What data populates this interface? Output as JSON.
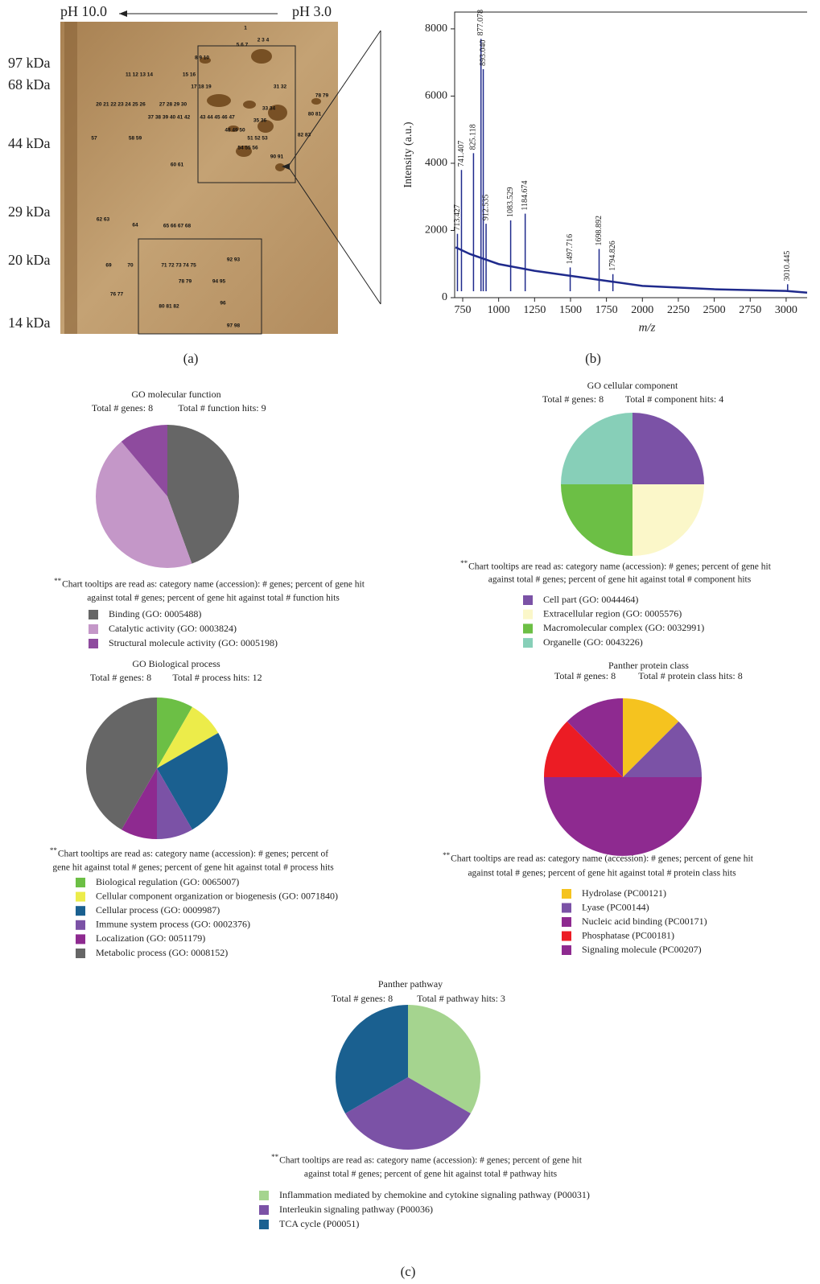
{
  "panel_labels": [
    "(a)",
    "(b)",
    "(c)"
  ],
  "gel": {
    "ph_left": "pH 10.0",
    "ph_right": "pH 3.0",
    "mw_labels": [
      "97 kDa",
      "68 kDa",
      "44 kDa",
      "29 kDa",
      "20 kDa",
      "14 kDa"
    ],
    "spot_labels": [
      "1",
      "5 6 7",
      "2 3 4",
      "8 9 10",
      "11 12 13 14",
      "15 16",
      "17 18 19",
      "31 32",
      "78 79",
      "20 21 22 23 24 25 26",
      "27 28 29 30",
      "33 34",
      "80 81",
      "37 38 39 40 41 42",
      "43 44 45 46 47",
      "35 36",
      "48 49 50",
      "82 83",
      "57",
      "58 59",
      "51 52 53",
      "54 55 56",
      "90 91",
      "60 61",
      "62 63",
      "64",
      "65 66 67 68",
      "92 93",
      "69",
      "70",
      "71 72 73 74 75",
      "78 79",
      "94 95",
      "76 77",
      "96",
      "80 81 82",
      "97 98"
    ]
  },
  "chart_data": [
    {
      "type": "spectrum",
      "ylabel": "Intensity (a.u.)",
      "xlabel": "m/z",
      "color": "#1f2a8c",
      "xlim": [
        694,
        3146
      ],
      "ylim": [
        0,
        8500
      ],
      "xticks": [
        750,
        1000,
        1250,
        1500,
        1750,
        2000,
        2250,
        2500,
        2750,
        3000
      ],
      "yticks": [
        0,
        2000,
        4000,
        6000,
        8000
      ],
      "peaks": {
        "x": [
          713.427,
          741.407,
          825.118,
          877.078,
          893.04,
          912.535,
          1083.529,
          1184.674,
          1497.716,
          1698.892,
          1794.826,
          3010.445
        ],
        "values": [
          1900,
          3800,
          4300,
          7700,
          6800,
          2200,
          2300,
          2500,
          900,
          1450,
          700,
          400
        ],
        "labels": [
          "713.427",
          "741.407",
          "825.118",
          "877.078",
          "893.040",
          "912.535",
          "1083.529",
          "1184.674",
          "1497.716",
          "1698.892",
          "1794.826",
          "3010.445"
        ]
      },
      "baseline": {
        "x": [
          700,
          800,
          1000,
          1250,
          1500,
          1750,
          2000,
          2500,
          3000,
          3146
        ],
        "values": [
          1500,
          1300,
          1000,
          800,
          650,
          500,
          350,
          250,
          200,
          150
        ]
      }
    },
    {
      "type": "pie",
      "title": "GO molecular function",
      "subtitle": [
        "Total # genes: 8",
        "Total # function hits: 9"
      ],
      "note_marker": "**",
      "note_lines": [
        "Chart tooltips are read as: category name (accession): # genes; percent of gene hit",
        "against total # genes; percent of gene hit against total # function hits"
      ],
      "categories": [
        "Binding (GO: 0005488)",
        "Catalytic activity (GO: 0003824)",
        "Structural molecule activity (GO: 0005198)"
      ],
      "values": [
        4,
        4,
        1
      ],
      "colors": [
        "#666666",
        "#c497c8",
        "#8e4b9e"
      ]
    },
    {
      "type": "pie",
      "title": "GO cellular component",
      "subtitle": [
        "Total # genes: 8",
        "Total # component hits: 4"
      ],
      "note_marker": "**",
      "note_lines": [
        "Chart tooltips are read as: category name (accession): # genes; percent of gene hit",
        "against total # genes; percent of gene hit against total # component hits"
      ],
      "categories": [
        "Cell part (GO: 0044464)",
        "Extracellular region (GO: 0005576)",
        "Macromolecular complex (GO: 0032991)",
        "Organelle (GO: 0043226)"
      ],
      "values": [
        1,
        1,
        1,
        1
      ],
      "colors": [
        "#7b52a6",
        "#fbf7c9",
        "#6cbf45",
        "#87cfb8"
      ]
    },
    {
      "type": "pie",
      "title": "GO Biological process",
      "subtitle": [
        "Total # genes: 8",
        "Total # process hits: 12"
      ],
      "note_marker": "**",
      "note_lines": [
        "Chart tooltips are read as: category name (accession): # genes; percent of",
        "gene hit against total # genes; percent of gene hit against total # process hits"
      ],
      "categories": [
        "Biological regulation (GO: 0065007)",
        "Cellular component organization or biogenesis (GO: 0071840)",
        "Cellular process (GO: 0009987)",
        "Immune system process (GO: 0002376)",
        "Localization (GO: 0051179)",
        "Metabolic process (GO: 0008152)"
      ],
      "values": [
        1,
        1,
        3,
        1,
        1,
        5
      ],
      "colors": [
        "#6cbf45",
        "#ecec4a",
        "#1a6090",
        "#7b52a6",
        "#8e2a90",
        "#666666"
      ]
    },
    {
      "type": "pie",
      "title": "Panther protein class",
      "subtitle": [
        "Total # genes: 8",
        "Total # protein class hits: 8"
      ],
      "note_marker": "**",
      "note_lines": [
        "Chart tooltips are read as: category name (accession): # genes; percent of gene hit",
        "against total # genes; percent of gene hit against total # protein class hits"
      ],
      "categories": [
        "Hydrolase (PC00121)",
        "Lyase (PC00144)",
        "Nucleic acid binding (PC00171)",
        "Phosphatase (PC00181)",
        "Signaling molecule (PC00207)"
      ],
      "values": [
        1,
        1,
        4,
        1,
        1
      ],
      "colors": [
        "#f5c31f",
        "#7b52a6",
        "#8e2a90",
        "#ec1c24",
        "#8e2a90"
      ]
    },
    {
      "type": "pie",
      "title": "Panther pathway",
      "subtitle": [
        "Total # genes: 8",
        "Total # pathway hits: 3"
      ],
      "note_marker": "**",
      "note_lines": [
        "Chart tooltips are read as: category name (accession): # genes; percent of gene hit",
        "against total # genes; percent of gene hit against total # pathway hits"
      ],
      "categories": [
        "Inflammation mediated by chemokine and cytokine signaling pathway (P00031)",
        "Interleukin signaling pathway (P00036)",
        "TCA cycle (P00051)"
      ],
      "values": [
        1,
        1,
        1
      ],
      "colors": [
        "#a5d48f",
        "#7b52a6",
        "#1a6090"
      ]
    }
  ]
}
